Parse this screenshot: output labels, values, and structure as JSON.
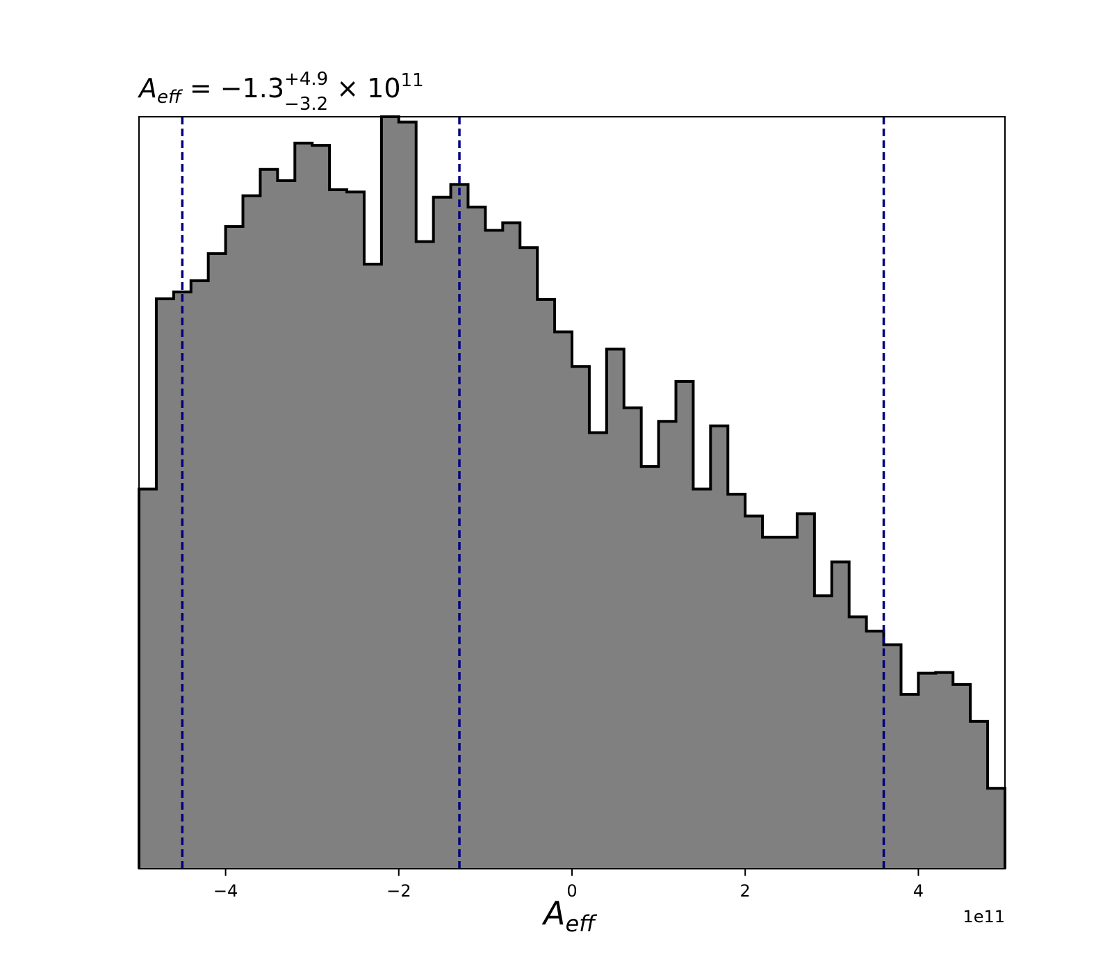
{
  "chart_data": {
    "type": "histogram",
    "title": {
      "symbol": "A",
      "symbol_sub": "eff",
      "main": " = −1.3",
      "upper_err": "+4.9",
      "lower_err": "−3.2",
      "times": " × 10",
      "exponent": "11"
    },
    "xlabel": {
      "symbol": "A",
      "sub": "eff"
    },
    "x_offset_label": "1e11",
    "xlim": [
      -5.0,
      5.0
    ],
    "ylim": [
      0,
      1.0
    ],
    "yaxis_visible": false,
    "grid": false,
    "bin_edges": [
      -5.0,
      -4.8,
      -4.6,
      -4.4,
      -4.2,
      -4.0,
      -3.8,
      -3.6,
      -3.4,
      -3.2,
      -3.0,
      -2.8,
      -2.6,
      -2.4,
      -2.2,
      -2.0,
      -1.8,
      -1.6,
      -1.4,
      -1.2,
      -1.0,
      -0.8,
      -0.6,
      -0.4,
      -0.2,
      0.0,
      0.2,
      0.4,
      0.6,
      0.8,
      1.0,
      1.2,
      1.4,
      1.6,
      1.8,
      2.0,
      2.2,
      2.4,
      2.6,
      2.8,
      3.0,
      3.2,
      3.4,
      3.6,
      3.8,
      4.0,
      4.2,
      4.4,
      4.6,
      4.8,
      5.0
    ],
    "counts": [
      0.505,
      0.758,
      0.767,
      0.782,
      0.818,
      0.854,
      0.895,
      0.93,
      0.915,
      0.965,
      0.962,
      0.903,
      0.9,
      0.804,
      1.0,
      0.993,
      0.834,
      0.893,
      0.91,
      0.88,
      0.849,
      0.859,
      0.826,
      0.757,
      0.714,
      0.668,
      0.58,
      0.691,
      0.613,
      0.535,
      0.595,
      0.648,
      0.505,
      0.589,
      0.498,
      0.469,
      0.441,
      0.441,
      0.472,
      0.363,
      0.408,
      0.335,
      0.316,
      0.298,
      0.232,
      0.26,
      0.261,
      0.245,
      0.196,
      0.107
    ],
    "series": [
      {
        "name": "",
        "color": "#808080",
        "edgecolor": "#000000"
      }
    ],
    "quantile_lines": {
      "values": [
        -4.5,
        -1.3,
        3.6
      ],
      "color": "#00007f",
      "style": "dashed"
    },
    "xticks": [
      -4,
      -2,
      0,
      2,
      4
    ],
    "xtick_labels": [
      "−4",
      "−2",
      "0",
      "2",
      "4"
    ]
  }
}
